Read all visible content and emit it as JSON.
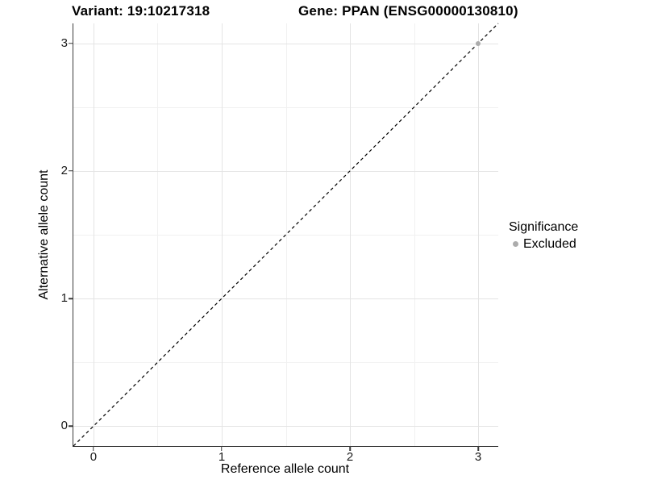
{
  "header": {
    "variant_title": "Variant: 19:10217318",
    "gene_title": "Gene: PPAN (ENSG00000130810)"
  },
  "chart_data": {
    "type": "scatter",
    "xlabel": "Reference allele count",
    "ylabel": "Alternative allele count",
    "xlim": [
      -0.157,
      3.157
    ],
    "ylim": [
      -0.157,
      3.157
    ],
    "x_major_ticks": [
      0,
      1,
      2,
      3
    ],
    "x_minor_ticks": [
      0.5,
      1.5,
      2.5
    ],
    "y_major_ticks": [
      0,
      1,
      2,
      3
    ],
    "y_minor_ticks": [
      0.5,
      1.5,
      2.5
    ],
    "grid": "major+minor",
    "points": [
      {
        "x": 3,
        "y": 3,
        "series": "Excluded",
        "color": "#acacac"
      }
    ],
    "reference_line": {
      "type": "identity",
      "slope": 1,
      "intercept": 0,
      "style": "dashed",
      "color": "#000000"
    },
    "legend": {
      "position": "right",
      "title": "Significance",
      "items": [
        {
          "label": "Excluded",
          "color": "#acacac",
          "marker": "circle"
        }
      ]
    }
  },
  "colors": {
    "background": "#ffffff",
    "axis_line": "#3c3c3c",
    "grid_major": "#e4e4e4",
    "grid_minor": "#f1f1f1",
    "excluded_point": "#acacac",
    "reference_line": "#000000"
  }
}
